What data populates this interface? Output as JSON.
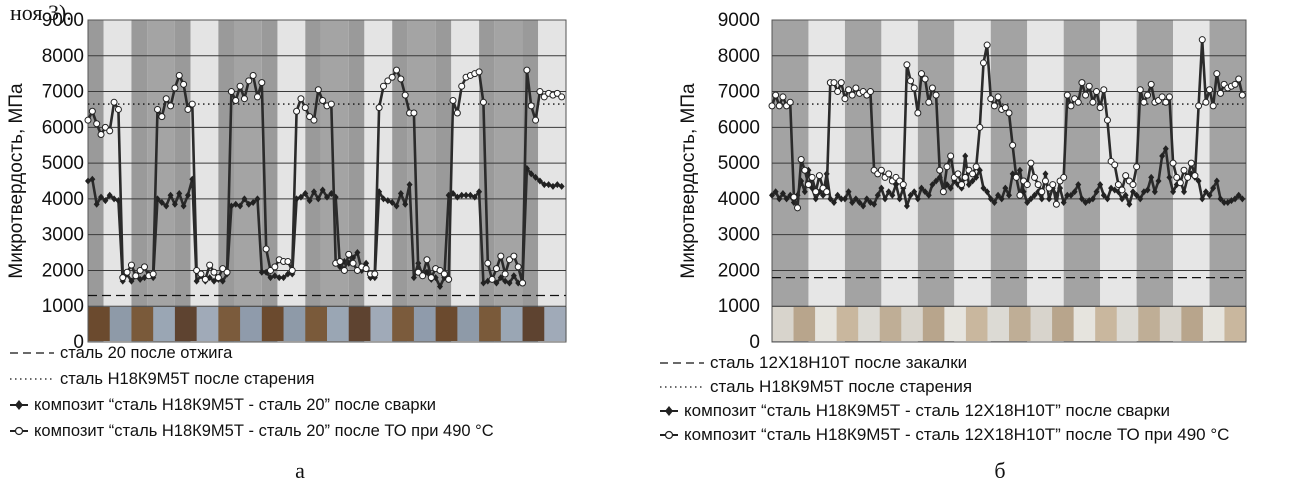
{
  "caption_top": "ноя 3).",
  "chart_data": [
    {
      "type": "line",
      "panel_label": "а",
      "xlabel": "",
      "ylabel": "Микротвердость, МПа",
      "ylim": [
        0,
        9000
      ],
      "yticks": [
        "0",
        "1000",
        "2000",
        "3000",
        "4000",
        "5000",
        "6000",
        "7000",
        "8000",
        "9000"
      ],
      "bands": 11,
      "xlim": [
        0,
        110
      ],
      "reference_lines": [
        {
          "name": "сталь 20 после отжига",
          "style": "dashed",
          "value": 1300
        },
        {
          "name": "сталь Н18К9М5Т после старения",
          "style": "dotted",
          "value": 6650
        }
      ],
      "series": [
        {
          "name": "композит “сталь Н18К9М5Т - сталь 20” после сварки",
          "marker": "filled",
          "x": [
            0,
            1,
            2,
            3,
            4,
            5,
            6,
            7,
            8,
            9,
            10,
            11,
            12,
            13,
            14,
            15,
            16,
            17,
            18,
            19,
            20,
            21,
            22,
            23,
            24,
            25,
            26,
            27,
            28,
            29,
            30,
            31,
            32,
            33,
            34,
            35,
            36,
            37,
            38,
            39,
            40,
            41,
            42,
            43,
            44,
            45,
            46,
            47,
            48,
            49,
            50,
            51,
            52,
            53,
            54,
            55,
            56,
            57,
            58,
            59,
            60,
            61,
            62,
            63,
            64,
            65,
            66,
            67,
            68,
            69,
            70,
            71,
            72,
            73,
            74,
            75,
            76,
            77,
            78,
            79,
            80,
            81,
            82,
            83,
            84,
            85,
            86,
            87,
            88,
            89,
            90,
            91,
            92,
            93,
            94,
            95,
            96,
            97,
            98,
            99,
            100,
            101,
            102,
            103,
            104,
            105,
            106,
            107,
            108,
            109
          ],
          "values": [
            4500,
            4550,
            3850,
            4050,
            3950,
            4100,
            4000,
            3950,
            1700,
            1900,
            1700,
            1850,
            1750,
            1800,
            1900,
            1800,
            4000,
            3900,
            3800,
            4100,
            3850,
            4150,
            3800,
            4100,
            4550,
            1700,
            1850,
            1700,
            1800,
            1700,
            1750,
            1700,
            1900,
            3800,
            3850,
            3800,
            4000,
            3850,
            3900,
            4000,
            1950,
            1950,
            1800,
            1850,
            1800,
            1800,
            1900,
            1900,
            4000,
            4050,
            4150,
            3950,
            4200,
            4000,
            4250,
            4050,
            4150,
            4050,
            2100,
            2250,
            2200,
            2350,
            2500,
            2000,
            2200,
            1800,
            1800,
            4200,
            4000,
            3950,
            3900,
            3800,
            4150,
            3850,
            4400,
            1800,
            2200,
            1850,
            1950,
            1750,
            1800,
            1550,
            1800,
            4100,
            4150,
            4050,
            4100,
            4100,
            4100,
            4050,
            4200,
            1650,
            1700,
            1750,
            1650,
            1800,
            1700,
            1650,
            1850,
            1650,
            1650,
            4850,
            4700,
            4600,
            4500,
            4400,
            4400,
            4350,
            4400,
            4350
          ]
        },
        {
          "name": "композит “сталь Н18К9М5Т - сталь 20” после ТО при 490 °C",
          "marker": "open",
          "x": [
            0,
            1,
            2,
            3,
            4,
            5,
            6,
            7,
            8,
            9,
            10,
            11,
            12,
            13,
            14,
            15,
            16,
            17,
            18,
            19,
            20,
            21,
            22,
            23,
            24,
            25,
            26,
            27,
            28,
            29,
            30,
            31,
            32,
            33,
            34,
            35,
            36,
            37,
            38,
            39,
            40,
            41,
            42,
            43,
            44,
            45,
            46,
            47,
            48,
            49,
            50,
            51,
            52,
            53,
            54,
            55,
            56,
            57,
            58,
            59,
            60,
            61,
            62,
            63,
            64,
            65,
            66,
            67,
            68,
            69,
            70,
            71,
            72,
            73,
            74,
            75,
            76,
            77,
            78,
            79,
            80,
            81,
            82,
            83,
            84,
            85,
            86,
            87,
            88,
            89,
            90,
            91,
            92,
            93,
            94,
            95,
            96,
            97,
            98,
            99,
            100,
            101,
            102,
            103,
            104,
            105,
            106,
            107,
            108,
            109
          ],
          "values": [
            6200,
            6450,
            6100,
            5800,
            6000,
            5900,
            6700,
            6500,
            1800,
            1950,
            2150,
            1850,
            2000,
            2100,
            1850,
            1900,
            6500,
            6300,
            6800,
            6600,
            7100,
            7450,
            7200,
            6500,
            6650,
            2000,
            1900,
            1750,
            2150,
            1950,
            1800,
            2050,
            1950,
            7000,
            6750,
            7150,
            6800,
            7300,
            7450,
            6850,
            7250,
            2600,
            2000,
            2100,
            2300,
            2250,
            2250,
            2000,
            6450,
            6800,
            6550,
            6300,
            6200,
            7050,
            6750,
            6600,
            6650,
            2200,
            2250,
            2000,
            2450,
            2200,
            2000,
            2100,
            2050,
            1900,
            1900,
            6550,
            7150,
            7300,
            7400,
            7600,
            7350,
            6900,
            6400,
            6400,
            1950,
            1850,
            2300,
            1800,
            2050,
            2000,
            1900,
            1750,
            6750,
            6400,
            7150,
            7400,
            7450,
            7500,
            7550,
            6700,
            2200,
            1750,
            2050,
            2400,
            1900,
            2300,
            2400,
            2100,
            1650,
            7600,
            6600,
            6200,
            7000,
            6850,
            6950,
            6900,
            6950,
            6850
          ]
        }
      ]
    },
    {
      "type": "line",
      "panel_label": "б",
      "xlabel": "",
      "ylabel": "Микротвердость, МПа",
      "ylim": [
        0,
        9000
      ],
      "yticks": [
        "0",
        "1000",
        "2000",
        "3000",
        "4000",
        "5000",
        "6000",
        "7000",
        "8000",
        "9000"
      ],
      "bands": 13,
      "xlim": [
        0,
        130
      ],
      "reference_lines": [
        {
          "name": "сталь 12Х18Н10Т после закалки",
          "style": "dashed",
          "value": 1800
        },
        {
          "name": "сталь Н18К9М5Т после старения",
          "style": "dotted",
          "value": 6650
        }
      ],
      "series": [
        {
          "name": "композит “сталь Н18К9М5Т - сталь 12Х18Н10Т” после сварки",
          "marker": "filled",
          "x": [
            0,
            1,
            2,
            3,
            4,
            5,
            6,
            7,
            8,
            9,
            10,
            11,
            12,
            13,
            14,
            15,
            16,
            17,
            18,
            19,
            20,
            21,
            22,
            23,
            24,
            25,
            26,
            27,
            28,
            29,
            30,
            31,
            32,
            33,
            34,
            35,
            36,
            37,
            38,
            39,
            40,
            41,
            42,
            43,
            44,
            45,
            46,
            47,
            48,
            49,
            50,
            51,
            52,
            53,
            54,
            55,
            56,
            57,
            58,
            59,
            60,
            61,
            62,
            63,
            64,
            65,
            66,
            67,
            68,
            69,
            70,
            71,
            72,
            73,
            74,
            75,
            76,
            77,
            78,
            79,
            80,
            81,
            82,
            83,
            84,
            85,
            86,
            87,
            88,
            89,
            90,
            91,
            92,
            93,
            94,
            95,
            96,
            97,
            98,
            99,
            100,
            101,
            102,
            103,
            104,
            105,
            106,
            107,
            108,
            109,
            110,
            111,
            112,
            113,
            114,
            115,
            116,
            117,
            118,
            119,
            120,
            121,
            122,
            123,
            124,
            125,
            126,
            127,
            128,
            129
          ],
          "values": [
            4100,
            4200,
            4000,
            4150,
            4000,
            4100,
            3900,
            4100,
            4500,
            4200,
            4800,
            4300,
            4000,
            4200,
            4100,
            4700,
            4000,
            3900,
            4100,
            4000,
            4000,
            4200,
            3900,
            4000,
            3900,
            3800,
            4000,
            3900,
            3850,
            4100,
            4300,
            4000,
            4200,
            4100,
            4400,
            4000,
            4300,
            3800,
            4100,
            4200,
            4000,
            4300,
            4200,
            4100,
            4400,
            4500,
            4600,
            4250,
            4400,
            4300,
            4500,
            4400,
            4300,
            5200,
            4400,
            4500,
            4600,
            4800,
            4300,
            4200,
            4000,
            3900,
            4100,
            4000,
            4300,
            4100,
            4700,
            4600,
            4800,
            4200,
            3900,
            4000,
            4100,
            4200,
            4000,
            4700,
            4000,
            4300,
            4100,
            4300,
            3900,
            4100,
            4100,
            4200,
            4400,
            4000,
            3900,
            3950,
            4000,
            4200,
            4400,
            4100,
            4000,
            4300,
            4250,
            4200,
            4000,
            4100,
            3850,
            4200,
            4100,
            4000,
            4200,
            4250,
            4600,
            4200,
            4500,
            5200,
            5400,
            4600,
            4200,
            4400,
            4500,
            4200,
            4600,
            4700,
            4600,
            4500,
            4000,
            4200,
            4100,
            4300,
            4500,
            4000,
            3900,
            3900,
            3950,
            4000,
            4100,
            4000
          ]
        },
        {
          "name": "композит “сталь Н18К9М5Т - сталь 12Х18Н10Т” после ТО при 490 °C",
          "marker": "open",
          "x": [
            0,
            1,
            2,
            3,
            4,
            5,
            6,
            7,
            8,
            9,
            10,
            11,
            12,
            13,
            14,
            15,
            16,
            17,
            18,
            19,
            20,
            21,
            22,
            23,
            24,
            25,
            26,
            27,
            28,
            29,
            30,
            31,
            32,
            33,
            34,
            35,
            36,
            37,
            38,
            39,
            40,
            41,
            42,
            43,
            44,
            45,
            46,
            47,
            48,
            49,
            50,
            51,
            52,
            53,
            54,
            55,
            56,
            57,
            58,
            59,
            60,
            61,
            62,
            63,
            64,
            65,
            66,
            67,
            68,
            69,
            70,
            71,
            72,
            73,
            74,
            75,
            76,
            77,
            78,
            79,
            80,
            81,
            82,
            83,
            84,
            85,
            86,
            87,
            88,
            89,
            90,
            91,
            92,
            93,
            94,
            95,
            96,
            97,
            98,
            99,
            100,
            101,
            102,
            103,
            104,
            105,
            106,
            107,
            108,
            109,
            110,
            111,
            112,
            113,
            114,
            115,
            116,
            117,
            118,
            119,
            120,
            121,
            122,
            123,
            124,
            125,
            126,
            127,
            128,
            129
          ],
          "values": [
            6600,
            6900,
            6600,
            6850,
            6600,
            6700,
            4050,
            3750,
            5100,
            4800,
            4400,
            4600,
            4200,
            4650,
            4300,
            4200,
            7250,
            7250,
            7000,
            7250,
            6800,
            7050,
            6900,
            7100,
            6950,
            7000,
            6900,
            7000,
            4800,
            4700,
            4800,
            4600,
            4700,
            4500,
            4600,
            4500,
            4400,
            7750,
            7300,
            7100,
            6400,
            7500,
            7350,
            6700,
            7100,
            6900,
            4800,
            4200,
            4900,
            5200,
            4600,
            4700,
            4400,
            4600,
            4800,
            4700,
            4900,
            6000,
            7800,
            8300,
            6800,
            6600,
            6850,
            6500,
            6550,
            6400,
            5500,
            4600,
            4100,
            4500,
            4400,
            5000,
            4600,
            4400,
            4200,
            4500,
            4300,
            4400,
            3850,
            4500,
            4600,
            6900,
            6600,
            6800,
            6700,
            7250,
            6900,
            7150,
            6700,
            7000,
            6550,
            7050,
            6200,
            5050,
            4950,
            4400,
            4250,
            4650,
            4500,
            4400,
            4900,
            7050,
            6700,
            6900,
            7200,
            6700,
            6750,
            6850,
            6700,
            6850,
            5000,
            4600,
            4450,
            4800,
            4600,
            5000,
            4650,
            6600,
            8450,
            6700,
            7050,
            6600,
            7500,
            6950,
            7200,
            7100,
            7150,
            7200,
            7350,
            6900
          ]
        }
      ]
    }
  ]
}
